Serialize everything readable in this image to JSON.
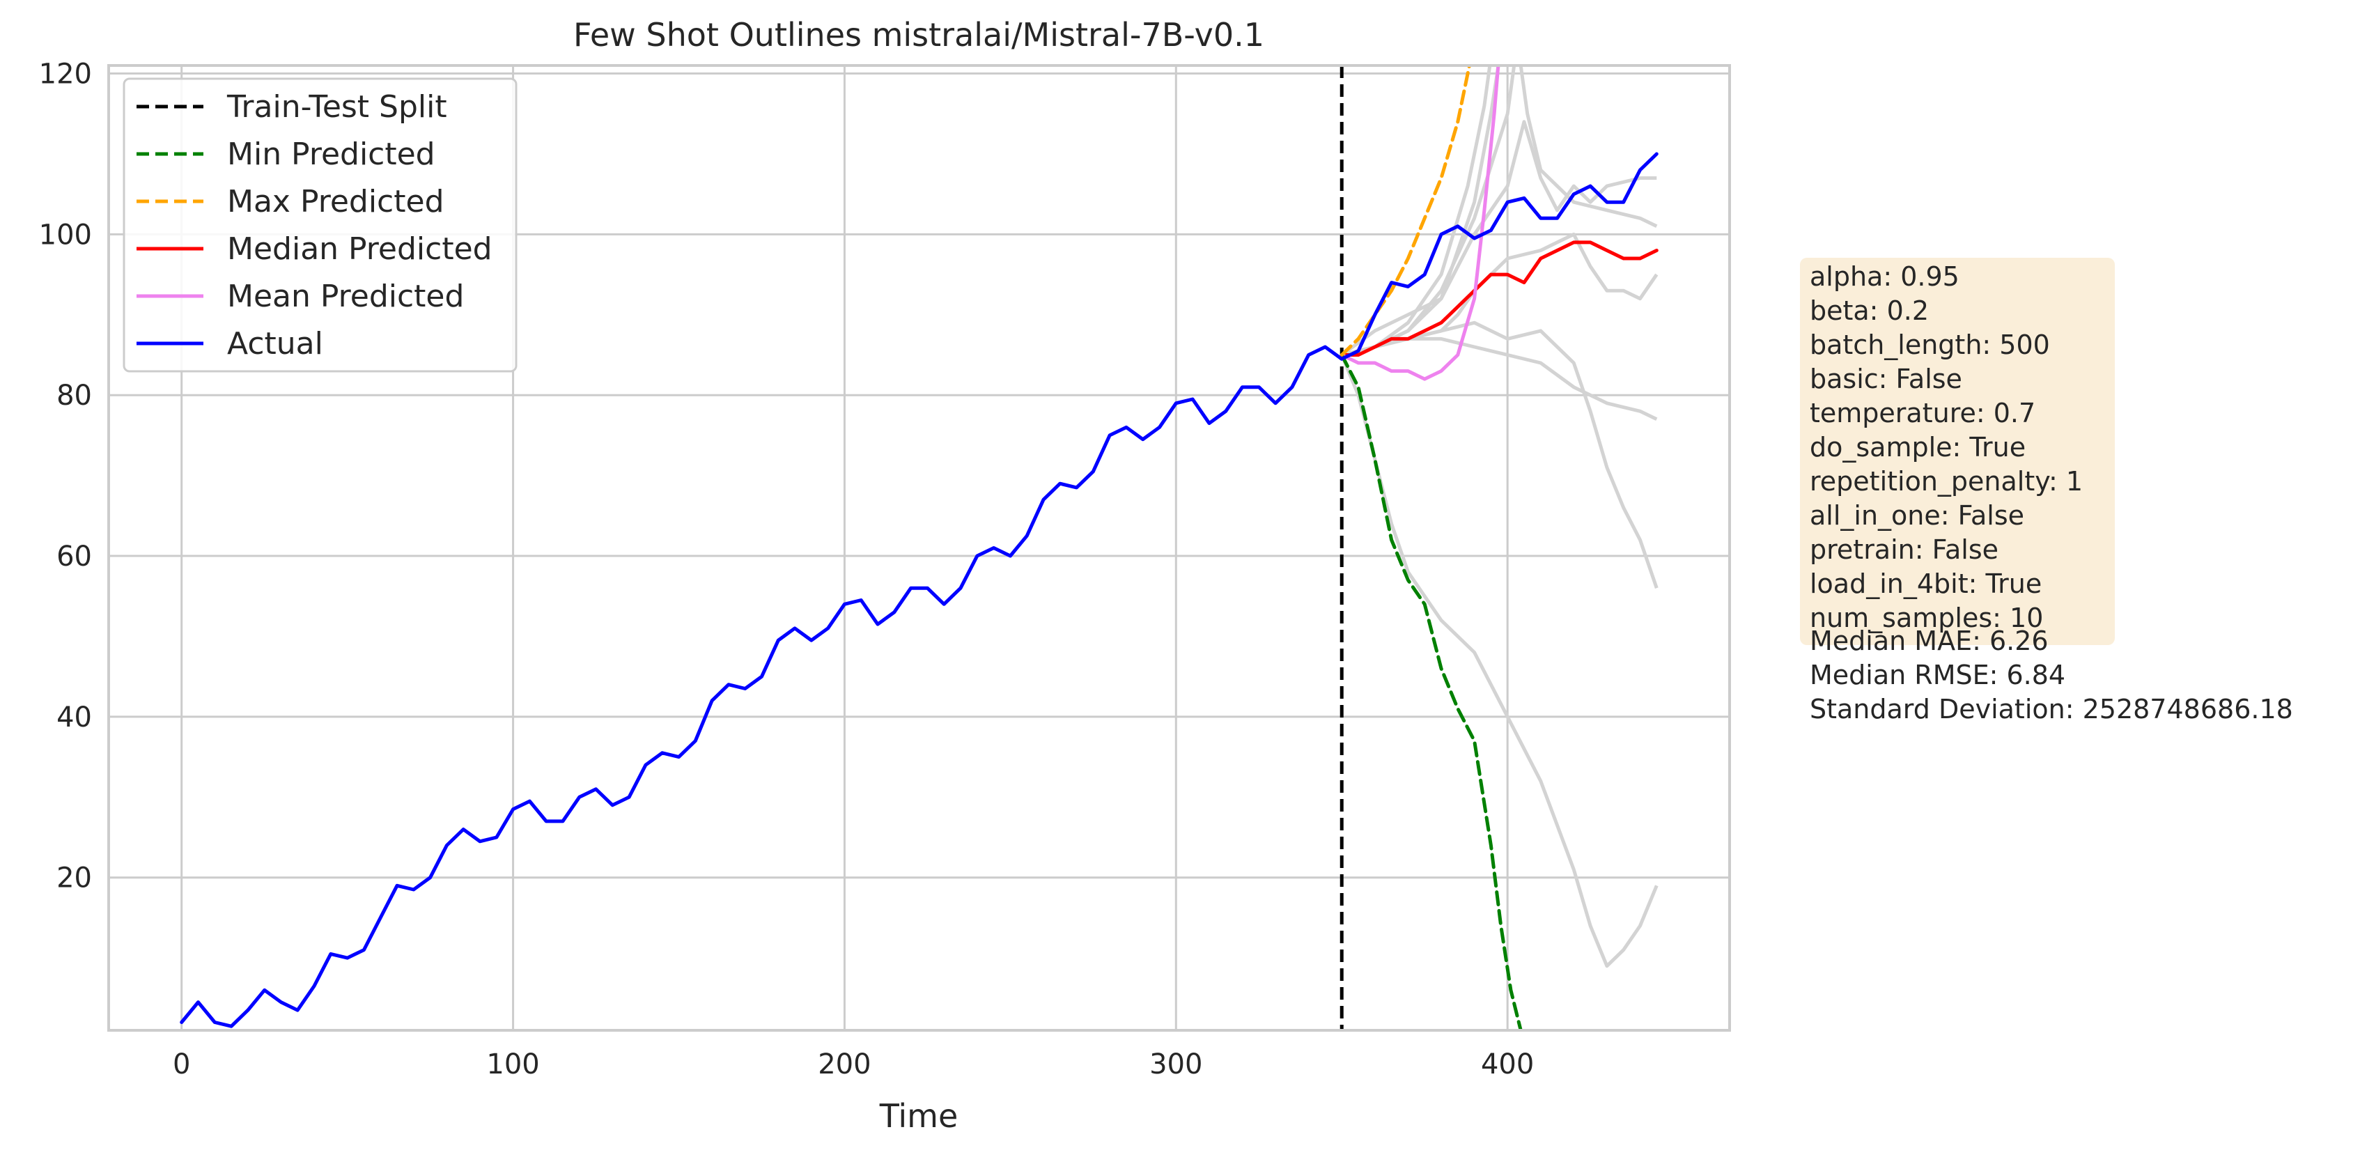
{
  "chart_data": {
    "type": "line",
    "title": "Few Shot Outlines mistralai/Mistral-7B-v0.1",
    "xlabel": "Time",
    "ylabel": "",
    "xlim": [
      -22,
      467
    ],
    "ylim": [
      1,
      121
    ],
    "xticks": [
      0,
      100,
      200,
      300,
      400
    ],
    "yticks": [
      20,
      40,
      60,
      80,
      100,
      120
    ],
    "grid": true,
    "legend_position": "top-left",
    "split_x": 350,
    "legend": [
      {
        "label": "Train-Test Split",
        "color": "#000000",
        "dash": true
      },
      {
        "label": "Min Predicted",
        "color": "#008000",
        "dash": true
      },
      {
        "label": "Max Predicted",
        "color": "#ffa500",
        "dash": true
      },
      {
        "label": "Median Predicted",
        "color": "#ff0000",
        "dash": false
      },
      {
        "label": "Mean Predicted",
        "color": "#ee82ee",
        "dash": false
      },
      {
        "label": "Actual",
        "color": "#0000ff",
        "dash": false
      }
    ],
    "series": [
      {
        "name": "Min Predicted",
        "color": "#008000",
        "dash": true,
        "x": [
          350,
          355,
          360,
          365,
          370,
          375,
          380,
          385,
          390,
          395,
          398,
          401,
          404,
          406
        ],
        "y": [
          85,
          81,
          72,
          62,
          57,
          54,
          46,
          41,
          37,
          24,
          14,
          6,
          1,
          -1
        ]
      },
      {
        "name": "Max Predicted",
        "color": "#ffa500",
        "dash": true,
        "x": [
          350,
          355,
          360,
          365,
          370,
          375,
          380,
          385,
          390
        ],
        "y": [
          85,
          87,
          90,
          93,
          97,
          102,
          107,
          114,
          124
        ]
      },
      {
        "name": "Median Predicted",
        "color": "#ff0000",
        "dash": false,
        "x": [
          350,
          355,
          360,
          365,
          370,
          375,
          380,
          385,
          390,
          395,
          400,
          405,
          410,
          415,
          420,
          425,
          430,
          435,
          440,
          445
        ],
        "y": [
          85,
          85,
          86,
          87,
          87,
          88,
          89,
          91,
          93,
          95,
          95,
          94,
          97,
          98,
          99,
          99,
          98,
          97,
          97,
          98
        ]
      },
      {
        "name": "Mean Predicted",
        "color": "#ee82ee",
        "dash": false,
        "x": [
          350,
          355,
          360,
          365,
          370,
          375,
          380,
          385,
          390,
          393,
          396,
          398
        ],
        "y": [
          85,
          84,
          84,
          83,
          83,
          82,
          83,
          85,
          92,
          103,
          115,
          125
        ]
      },
      {
        "name": "Actual",
        "color": "#0000ff",
        "dash": false,
        "x": [
          0,
          5,
          10,
          15,
          20,
          25,
          30,
          35,
          40,
          45,
          50,
          55,
          60,
          65,
          70,
          75,
          80,
          85,
          90,
          95,
          100,
          105,
          110,
          115,
          120,
          125,
          130,
          135,
          140,
          145,
          150,
          155,
          160,
          165,
          170,
          175,
          180,
          185,
          190,
          195,
          200,
          205,
          210,
          215,
          220,
          225,
          230,
          235,
          240,
          245,
          250,
          255,
          260,
          265,
          270,
          275,
          280,
          285,
          290,
          295,
          300,
          305,
          310,
          315,
          320,
          325,
          330,
          335,
          340,
          345,
          350,
          355,
          360,
          365,
          370,
          375,
          380,
          385,
          390,
          395,
          400,
          405,
          410,
          415,
          420,
          425,
          430,
          435,
          440,
          445
        ],
        "y": [
          2,
          4.5,
          2,
          1.5,
          3.5,
          6,
          4.5,
          3.5,
          6.5,
          10.5,
          10,
          11,
          15,
          19,
          18.5,
          20,
          24,
          26,
          24.5,
          25,
          28.5,
          29.5,
          27,
          27,
          30,
          31,
          29,
          30,
          34,
          35.5,
          35,
          37,
          42,
          44,
          43.5,
          45,
          49.5,
          51,
          49.5,
          51,
          54,
          54.5,
          51.5,
          53,
          56,
          56,
          54,
          56,
          60,
          61,
          60,
          62.5,
          67,
          69,
          68.5,
          70.5,
          75,
          76,
          74.5,
          76,
          79,
          79.5,
          76.5,
          78,
          81,
          81,
          79,
          81,
          85,
          86,
          84.5,
          85.5,
          90,
          94,
          93.5,
          95,
          100,
          101,
          99.5,
          100.5,
          104,
          104.5,
          102,
          102,
          105,
          106,
          104,
          104,
          108,
          110
        ]
      }
    ],
    "samples_color": "#d3d3d3",
    "samples": [
      {
        "x": [
          350,
          360,
          370,
          380,
          390,
          395,
          398,
          401
        ],
        "y": [
          85,
          86,
          88,
          92,
          104,
          115,
          123,
          128
        ]
      },
      {
        "x": [
          350,
          360,
          370,
          380,
          388,
          393,
          396
        ],
        "y": [
          85,
          86,
          89,
          95,
          106,
          116,
          125
        ]
      },
      {
        "x": [
          350,
          360,
          370,
          380,
          390,
          400,
          405,
          410,
          415,
          420,
          425,
          430,
          440,
          445
        ],
        "y": [
          85,
          88,
          90,
          92,
          100,
          106,
          114,
          107,
          103,
          106,
          104,
          106,
          107,
          107
        ]
      },
      {
        "x": [
          350,
          360,
          370,
          380,
          390,
          400,
          403,
          406,
          410,
          415,
          420,
          430,
          440,
          445
        ],
        "y": [
          85,
          86,
          88,
          93,
          102,
          115,
          124,
          115,
          108,
          106,
          104,
          103,
          102,
          101
        ]
      },
      {
        "x": [
          350,
          360,
          370,
          380,
          385,
          390,
          400,
          410,
          415,
          420,
          425,
          430,
          435,
          440,
          445
        ],
        "y": [
          85,
          86,
          87,
          88,
          90,
          93,
          97,
          98,
          99,
          100,
          96,
          93,
          93,
          92,
          95
        ]
      },
      {
        "x": [
          350,
          360,
          370,
          380,
          390,
          400,
          410,
          420,
          425,
          430,
          440,
          445
        ],
        "y": [
          85,
          86,
          87,
          87,
          86,
          85,
          84,
          81,
          80,
          79,
          78,
          77
        ]
      },
      {
        "x": [
          350,
          360,
          370,
          380,
          390,
          400,
          410,
          420,
          425,
          430,
          435,
          440,
          445
        ],
        "y": [
          85,
          86,
          87,
          88,
          89,
          87,
          88,
          84,
          78,
          71,
          66,
          62,
          56
        ]
      },
      {
        "x": [
          350,
          355,
          360,
          365,
          370,
          375,
          380,
          390,
          400,
          410,
          420,
          425,
          430,
          435,
          440,
          445
        ],
        "y": [
          85,
          80,
          72,
          64,
          58,
          55,
          52,
          48,
          40,
          32,
          21,
          14,
          9,
          11,
          14,
          19
        ]
      }
    ],
    "annotation": {
      "box_lines": [
        "alpha: 0.95",
        "beta: 0.2",
        "batch_length: 500",
        "basic: False",
        "temperature: 0.7",
        "do_sample: True",
        "repetition_penalty: 1",
        "all_in_one: False",
        "pretrain: False",
        "load_in_4bit: True",
        "num_samples: 10"
      ],
      "metric_lines": [
        "Median MAE: 6.26",
        "Median RMSE: 6.84",
        "Standard Deviation: 2528748686.18"
      ],
      "box_color": "#f5deb3"
    }
  }
}
